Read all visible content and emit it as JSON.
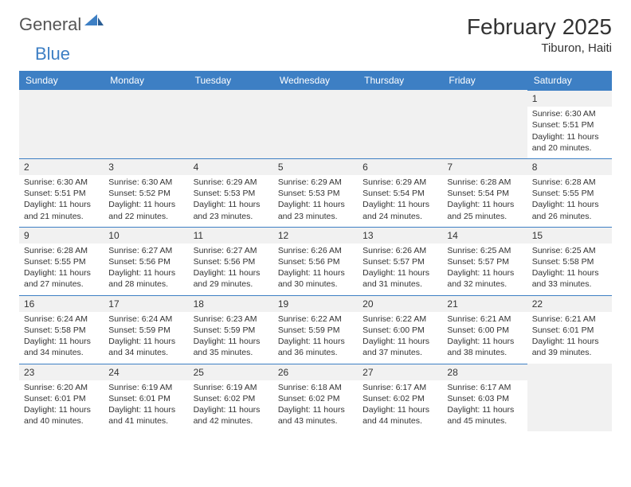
{
  "brand": {
    "part1": "General",
    "part2": "Blue"
  },
  "title": "February 2025",
  "location": "Tiburon, Haiti",
  "colors": {
    "header_bg": "#3d7fc4",
    "header_text": "#ffffff",
    "body_text": "#333333",
    "daynum_bg": "#f1f1f1",
    "border": "#3d7fc4",
    "page_bg": "#ffffff"
  },
  "layout": {
    "columns": 7,
    "rows": 5,
    "first_day_column_index": 6
  },
  "weekdays": [
    "Sunday",
    "Monday",
    "Tuesday",
    "Wednesday",
    "Thursday",
    "Friday",
    "Saturday"
  ],
  "days": [
    {
      "n": 1,
      "sunrise": "6:30 AM",
      "sunset": "5:51 PM",
      "daylight": "11 hours and 20 minutes."
    },
    {
      "n": 2,
      "sunrise": "6:30 AM",
      "sunset": "5:51 PM",
      "daylight": "11 hours and 21 minutes."
    },
    {
      "n": 3,
      "sunrise": "6:30 AM",
      "sunset": "5:52 PM",
      "daylight": "11 hours and 22 minutes."
    },
    {
      "n": 4,
      "sunrise": "6:29 AM",
      "sunset": "5:53 PM",
      "daylight": "11 hours and 23 minutes."
    },
    {
      "n": 5,
      "sunrise": "6:29 AM",
      "sunset": "5:53 PM",
      "daylight": "11 hours and 23 minutes."
    },
    {
      "n": 6,
      "sunrise": "6:29 AM",
      "sunset": "5:54 PM",
      "daylight": "11 hours and 24 minutes."
    },
    {
      "n": 7,
      "sunrise": "6:28 AM",
      "sunset": "5:54 PM",
      "daylight": "11 hours and 25 minutes."
    },
    {
      "n": 8,
      "sunrise": "6:28 AM",
      "sunset": "5:55 PM",
      "daylight": "11 hours and 26 minutes."
    },
    {
      "n": 9,
      "sunrise": "6:28 AM",
      "sunset": "5:55 PM",
      "daylight": "11 hours and 27 minutes."
    },
    {
      "n": 10,
      "sunrise": "6:27 AM",
      "sunset": "5:56 PM",
      "daylight": "11 hours and 28 minutes."
    },
    {
      "n": 11,
      "sunrise": "6:27 AM",
      "sunset": "5:56 PM",
      "daylight": "11 hours and 29 minutes."
    },
    {
      "n": 12,
      "sunrise": "6:26 AM",
      "sunset": "5:56 PM",
      "daylight": "11 hours and 30 minutes."
    },
    {
      "n": 13,
      "sunrise": "6:26 AM",
      "sunset": "5:57 PM",
      "daylight": "11 hours and 31 minutes."
    },
    {
      "n": 14,
      "sunrise": "6:25 AM",
      "sunset": "5:57 PM",
      "daylight": "11 hours and 32 minutes."
    },
    {
      "n": 15,
      "sunrise": "6:25 AM",
      "sunset": "5:58 PM",
      "daylight": "11 hours and 33 minutes."
    },
    {
      "n": 16,
      "sunrise": "6:24 AM",
      "sunset": "5:58 PM",
      "daylight": "11 hours and 34 minutes."
    },
    {
      "n": 17,
      "sunrise": "6:24 AM",
      "sunset": "5:59 PM",
      "daylight": "11 hours and 34 minutes."
    },
    {
      "n": 18,
      "sunrise": "6:23 AM",
      "sunset": "5:59 PM",
      "daylight": "11 hours and 35 minutes."
    },
    {
      "n": 19,
      "sunrise": "6:22 AM",
      "sunset": "5:59 PM",
      "daylight": "11 hours and 36 minutes."
    },
    {
      "n": 20,
      "sunrise": "6:22 AM",
      "sunset": "6:00 PM",
      "daylight": "11 hours and 37 minutes."
    },
    {
      "n": 21,
      "sunrise": "6:21 AM",
      "sunset": "6:00 PM",
      "daylight": "11 hours and 38 minutes."
    },
    {
      "n": 22,
      "sunrise": "6:21 AM",
      "sunset": "6:01 PM",
      "daylight": "11 hours and 39 minutes."
    },
    {
      "n": 23,
      "sunrise": "6:20 AM",
      "sunset": "6:01 PM",
      "daylight": "11 hours and 40 minutes."
    },
    {
      "n": 24,
      "sunrise": "6:19 AM",
      "sunset": "6:01 PM",
      "daylight": "11 hours and 41 minutes."
    },
    {
      "n": 25,
      "sunrise": "6:19 AM",
      "sunset": "6:02 PM",
      "daylight": "11 hours and 42 minutes."
    },
    {
      "n": 26,
      "sunrise": "6:18 AM",
      "sunset": "6:02 PM",
      "daylight": "11 hours and 43 minutes."
    },
    {
      "n": 27,
      "sunrise": "6:17 AM",
      "sunset": "6:02 PM",
      "daylight": "11 hours and 44 minutes."
    },
    {
      "n": 28,
      "sunrise": "6:17 AM",
      "sunset": "6:03 PM",
      "daylight": "11 hours and 45 minutes."
    }
  ],
  "labels": {
    "sunrise": "Sunrise:",
    "sunset": "Sunset:",
    "daylight": "Daylight:"
  }
}
